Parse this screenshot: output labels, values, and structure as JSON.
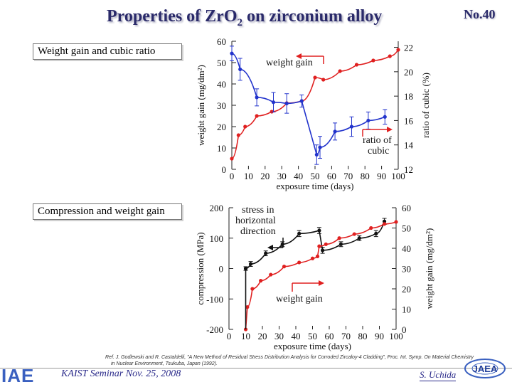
{
  "slide": {
    "title_main": "Properties of Zr",
    "title_sub": "2",
    "title_rest": " on zirconium alloy",
    "title_letter_o": "O",
    "page_number": "No.40",
    "section1": "Weight gain and cubic ratio",
    "section2": "Compression and weight gain",
    "reference_line1": "Ref. J. Godlewski and R. Castaldelli, \"A New Method of Residual Stress Distribution Analysis for Corroded Zircaloy-4 Cladding\", Proc. Int. Symp. On Material Chemistry",
    "reference_line2": "in Nuclear Environment, Tsukuba, Japan (1992).",
    "footer_logo": "IAE",
    "footer_seminar": "KAIST Seminar  Nov. 25, 2008",
    "footer_author": "S. Uchida",
    "footer_jaea": "JAEA"
  },
  "colors": {
    "blue": "#2233cc",
    "red": "#e02020",
    "black": "#111111",
    "title": "#2a2a6a"
  },
  "chart_data": [
    {
      "type": "line",
      "xlabel": "exposure time (days)",
      "ylabel_left": "weight gain  (mg/dm²)",
      "ylabel_right": "ratio of cubic  (%)",
      "xlim": [
        0,
        100
      ],
      "ylim_left": [
        0,
        60
      ],
      "ylim_right": [
        12,
        22.5
      ],
      "x_ticks": [
        "0",
        "10",
        "20",
        "30",
        "40",
        "50",
        "60",
        "70",
        "80",
        "90",
        "100"
      ],
      "y_left_ticks": [
        "0",
        "10",
        "20",
        "30",
        "40",
        "50",
        "60"
      ],
      "y_right_ticks": [
        "12",
        "14",
        "16",
        "18",
        "20",
        "22"
      ],
      "annotations": [
        "weight gain",
        "ratio of",
        "cubic"
      ],
      "series": [
        {
          "name": "weight gain",
          "axis": "left",
          "color": "red",
          "x": [
            0,
            4,
            8,
            15,
            24,
            33,
            42,
            50,
            55,
            65,
            75,
            85,
            95,
            100
          ],
          "y": [
            5,
            16,
            20,
            25,
            27,
            31,
            32,
            43,
            42,
            46,
            49,
            51,
            53,
            56
          ]
        },
        {
          "name": "ratio of cubic",
          "axis": "right",
          "color": "blue",
          "x": [
            0,
            5,
            15,
            25,
            33,
            42,
            51,
            53,
            62,
            72,
            82,
            92
          ],
          "y": [
            21.5,
            20.2,
            17.9,
            17.5,
            17.4,
            17.6,
            13.2,
            13.8,
            15.1,
            15.5,
            16.0,
            16.3
          ],
          "errors": [
            0.6,
            0.9,
            0.7,
            0.8,
            0.8,
            0.5,
            0.8,
            0.9,
            0.7,
            0.8,
            0.7,
            0.6
          ]
        }
      ]
    },
    {
      "type": "line",
      "xlabel": "exposure time (days)",
      "ylabel_left": "compression (MPa)",
      "ylabel_right": "weight gain  (mg/dm²)",
      "xlim": [
        0,
        100
      ],
      "ylim_left": [
        -200,
        200
      ],
      "ylim_right": [
        0,
        60
      ],
      "x_ticks": [
        "0",
        "10",
        "20",
        "30",
        "40",
        "50",
        "60",
        "70",
        "80",
        "90",
        "100"
      ],
      "y_left_ticks": [
        "-200",
        "-100",
        "0",
        "100",
        "200"
      ],
      "y_right_ticks": [
        "0",
        "10",
        "20",
        "30",
        "40",
        "50",
        "60"
      ],
      "annotations": [
        "stress in",
        "horizontal",
        "direction",
        "weight gain"
      ],
      "series": [
        {
          "name": "stress in horizontal direction",
          "axis": "left",
          "color": "black",
          "x": [
            10,
            13,
            22,
            32,
            42,
            54,
            56,
            67,
            78,
            88,
            93
          ],
          "y": [
            0,
            15,
            50,
            80,
            115,
            125,
            60,
            80,
            100,
            115,
            155
          ],
          "errors": [
            6,
            8,
            8,
            8,
            10,
            10,
            10,
            8,
            8,
            10,
            10
          ]
        },
        {
          "name": "weight gain",
          "axis": "right",
          "color": "red",
          "x": [
            10,
            11,
            14,
            19,
            25,
            33,
            42,
            50,
            53,
            54,
            58,
            66,
            75,
            85,
            93,
            100
          ],
          "y": [
            0,
            11,
            20,
            24,
            27,
            31,
            33,
            35,
            36,
            41,
            42,
            45,
            47,
            50,
            52,
            53
          ]
        }
      ]
    }
  ]
}
